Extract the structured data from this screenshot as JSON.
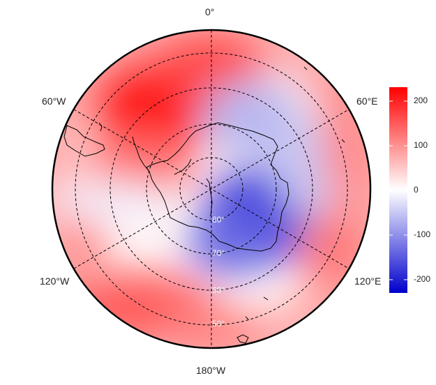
{
  "map": {
    "projection": "south-polar-stereographic",
    "longitude_labels": {
      "top": "0°",
      "upper_left": "60°W",
      "upper_right": "60°E",
      "lower_left": "120°W",
      "lower_right": "120°E",
      "bottom": "180°W"
    },
    "latitude_labels": [
      "80°",
      "70°",
      "60°",
      "50°"
    ],
    "colors": {
      "positive": "#ff0000",
      "neutral": "#ffffff",
      "negative": "#0000cc",
      "coastline": "#000000",
      "graticule": "#000000"
    }
  },
  "colorbar": {
    "ticks": [
      "200",
      "100",
      "0",
      "-100",
      "-200"
    ],
    "range": [
      -230,
      230
    ]
  }
}
